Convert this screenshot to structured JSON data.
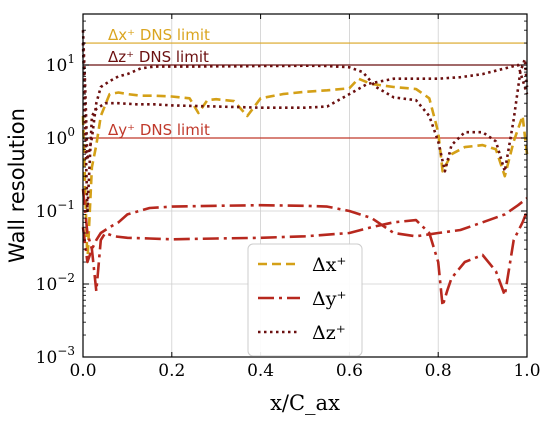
{
  "chart_data": {
    "type": "line",
    "xlabel": "x/C_ax",
    "ylabel": "Wall resolution",
    "xlim": [
      0.0,
      1.0
    ],
    "ylim": [
      0.001,
      50
    ],
    "yscale": "log",
    "grid": true,
    "legend_position": "bottom-center",
    "x_ticks": [
      "0.0",
      "0.2",
      "0.4",
      "0.6",
      "0.8",
      "1.0"
    ],
    "y_ticks": [
      {
        "value": 0.001,
        "base": "10",
        "exp": "−3"
      },
      {
        "value": 0.01,
        "base": "10",
        "exp": "−2"
      },
      {
        "value": 0.1,
        "base": "10",
        "exp": "−1"
      },
      {
        "value": 1,
        "base": "10",
        "exp": "0"
      },
      {
        "value": 10,
        "base": "10",
        "exp": "1"
      }
    ],
    "limits": [
      {
        "label": "Δx⁺ DNS limit",
        "value": 20,
        "color": "#DAA520"
      },
      {
        "label": "Δz⁺ DNS limit",
        "value": 10,
        "color": "#6B1010"
      },
      {
        "label": "Δy⁺ DNS limit",
        "value": 1,
        "color": "#C0392B"
      }
    ],
    "series": [
      {
        "name": "Δx⁺",
        "color": "#D4A017",
        "dash": "9,5",
        "width": 2.6,
        "x": [
          0.0,
          0.01,
          0.02,
          0.03,
          0.04,
          0.06,
          0.08,
          0.1,
          0.13,
          0.16,
          0.2,
          0.24,
          0.26,
          0.28,
          0.3,
          0.34,
          0.37,
          0.4,
          0.45,
          0.5,
          0.55,
          0.6,
          0.62,
          0.65,
          0.7,
          0.75,
          0.78,
          0.8,
          0.81,
          0.83,
          0.86,
          0.9,
          0.93,
          0.95,
          0.97,
          0.99,
          1.0
        ],
        "y": [
          2,
          0.02,
          0.4,
          0.8,
          2,
          4,
          4.2,
          4,
          3.8,
          3.8,
          3.7,
          3.5,
          2.2,
          3.3,
          3.4,
          3.2,
          2,
          3.5,
          4,
          4.3,
          4.5,
          4.8,
          6.5,
          5.5,
          5,
          4.7,
          3.5,
          1.2,
          0.35,
          0.6,
          0.75,
          0.8,
          0.7,
          0.3,
          0.9,
          2,
          0.6
        ]
      },
      {
        "name": "Δz⁺",
        "color": "#6B1010",
        "dash": "2.5,3.5",
        "width": 2.6,
        "x": [
          0.0,
          0.005,
          0.01,
          0.02,
          0.03,
          0.04,
          0.06,
          0.08,
          0.1,
          0.13,
          0.16,
          0.2,
          0.25,
          0.3,
          0.35,
          0.4,
          0.45,
          0.5,
          0.55,
          0.6,
          0.63,
          0.66,
          0.7,
          0.75,
          0.78,
          0.8,
          0.815,
          0.83,
          0.86,
          0.9,
          0.93,
          0.95,
          0.97,
          0.985,
          0.995,
          1.0
        ],
        "y": [
          30,
          5,
          0.5,
          1,
          3,
          5,
          6,
          7,
          7.5,
          9,
          9.5,
          9.5,
          9.5,
          9.6,
          9.6,
          9.7,
          9.7,
          9.8,
          9.7,
          9.3,
          8,
          5,
          3.6,
          3.3,
          2,
          0.9,
          0.35,
          0.8,
          1.2,
          1.2,
          0.9,
          0.35,
          1.8,
          8,
          12,
          5
        ]
      },
      {
        "name": "Δz⁺",
        "color": "#6B1010",
        "dash": "2.5,3.5",
        "width": 2.6,
        "x": [
          0.0,
          0.01,
          0.02,
          0.03,
          0.05,
          0.08,
          0.12,
          0.16,
          0.2,
          0.3,
          0.4,
          0.5,
          0.55,
          0.6,
          0.64,
          0.7,
          0.75,
          0.8,
          0.85,
          0.9,
          0.95,
          0.98,
          1.0
        ],
        "y": [
          20,
          0.1,
          2,
          2.5,
          3,
          3,
          2.9,
          2.9,
          2.8,
          2.7,
          2.6,
          2.6,
          2.7,
          4,
          5.5,
          6.5,
          6.5,
          6.5,
          6.8,
          7.5,
          9,
          10,
          4
        ]
      },
      {
        "name": "Δy⁺",
        "color": "#B7281E",
        "dash": "16,5,3,5",
        "width": 2.6,
        "x": [
          0.0,
          0.01,
          0.02,
          0.03,
          0.04,
          0.06,
          0.08,
          0.1,
          0.15,
          0.2,
          0.3,
          0.4,
          0.5,
          0.55,
          0.6,
          0.65,
          0.7,
          0.75,
          0.8,
          0.85,
          0.9,
          0.95,
          0.98,
          1.0
        ],
        "y": [
          0.06,
          0.02,
          0.03,
          0.04,
          0.05,
          0.06,
          0.07,
          0.09,
          0.11,
          0.115,
          0.118,
          0.12,
          0.118,
          0.115,
          0.1,
          0.08,
          0.05,
          0.045,
          0.05,
          0.055,
          0.07,
          0.09,
          0.12,
          0.15
        ]
      },
      {
        "name": "Δy⁺",
        "color": "#B7281E",
        "dash": "16,5,3,5",
        "width": 2.6,
        "x": [
          0.0,
          0.01,
          0.02,
          0.03,
          0.04,
          0.05,
          0.07,
          0.1,
          0.15,
          0.2,
          0.3,
          0.4,
          0.5,
          0.6,
          0.65,
          0.7,
          0.75,
          0.78,
          0.8,
          0.81,
          0.82,
          0.83,
          0.86,
          0.9,
          0.93,
          0.95,
          0.97,
          0.99,
          1.0
        ],
        "y": [
          0.2,
          0.05,
          0.03,
          0.008,
          0.04,
          0.05,
          0.045,
          0.043,
          0.042,
          0.041,
          0.042,
          0.043,
          0.045,
          0.05,
          0.06,
          0.07,
          0.075,
          0.05,
          0.02,
          0.005,
          0.008,
          0.012,
          0.02,
          0.025,
          0.015,
          0.007,
          0.04,
          0.07,
          0.1
        ]
      }
    ],
    "legend": [
      {
        "label": "Δx⁺",
        "color": "#D4A017",
        "dash": "9,5"
      },
      {
        "label": "Δy⁺",
        "color": "#B7281E",
        "dash": "16,5,3,5"
      },
      {
        "label": "Δz⁺",
        "color": "#6B1010",
        "dash": "2.5,3.5"
      }
    ]
  }
}
